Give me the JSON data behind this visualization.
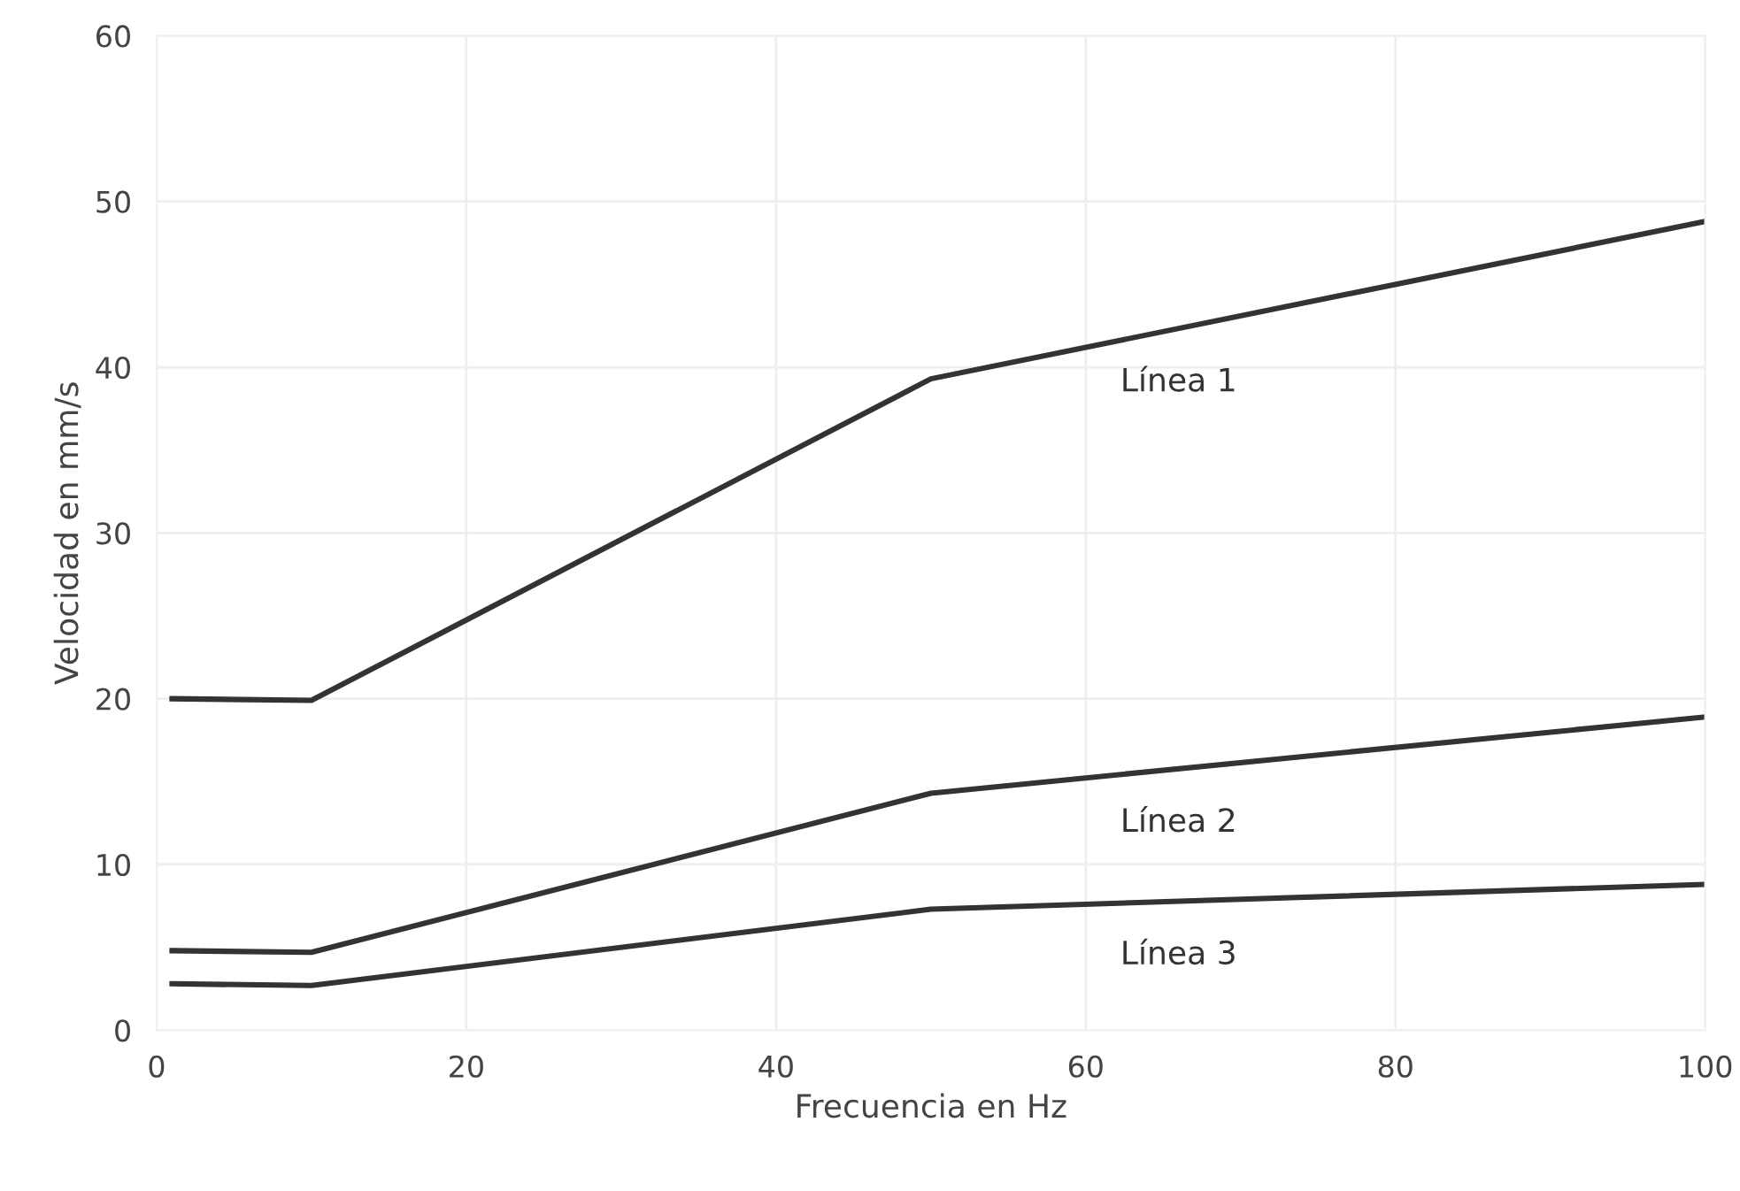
{
  "chart_data": {
    "type": "line",
    "xlabel": "Frecuencia en Hz",
    "ylabel": "Velocidad en mm/s",
    "x": [
      1,
      10,
      50,
      100
    ],
    "series": [
      {
        "name": "Línea 1",
        "color": "#333333",
        "values": [
          20,
          19.9,
          39.3,
          48.8
        ]
      },
      {
        "name": "Línea 2",
        "color": "#333333",
        "values": [
          4.8,
          4.7,
          14.3,
          18.9
        ]
      },
      {
        "name": "Línea 3",
        "color": "#333333",
        "values": [
          2.8,
          2.7,
          7.3,
          8.8
        ]
      }
    ],
    "xlim": [
      0,
      100
    ],
    "ylim": [
      0,
      60
    ],
    "xticks": [
      0,
      20,
      40,
      60,
      80,
      100
    ],
    "yticks": [
      0,
      10,
      20,
      30,
      40,
      50,
      60
    ],
    "grid": true,
    "marker": "none",
    "line_style": "solid"
  }
}
